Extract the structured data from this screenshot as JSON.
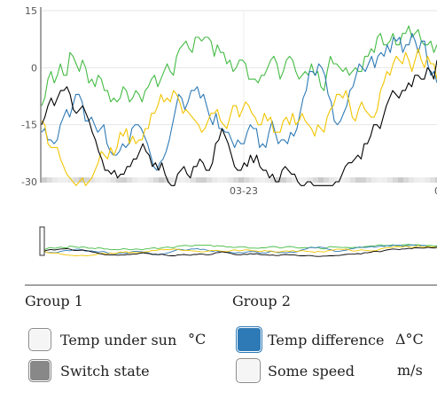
{
  "chart_data": {
    "type": "line",
    "title": "",
    "y_ticks": [
      15,
      0,
      -15,
      -30
    ],
    "ylim": [
      -30,
      15
    ],
    "x_tick_label": "03-23",
    "x_tick_label_right": "0",
    "grid": true,
    "series": [
      {
        "name": "Temp under sun",
        "color": "#44bb44",
        "values": [
          -10,
          -8,
          -3,
          -1,
          -4,
          -2,
          1,
          -2,
          -2,
          4,
          3,
          1,
          -1,
          2,
          0,
          -4,
          -3,
          -5,
          -2,
          -3,
          -6,
          -6,
          -9,
          -8,
          -9,
          -8,
          -5,
          -6,
          -9,
          -8,
          -6,
          -7,
          -9,
          -6,
          -5,
          -3,
          -2,
          -5,
          -3,
          -1,
          1,
          -1,
          -2,
          3,
          5,
          6,
          7,
          5,
          4,
          8,
          8,
          7,
          8,
          8,
          7,
          3,
          6,
          4,
          4,
          1,
          2,
          -1,
          0,
          2,
          2,
          1,
          -3,
          -3,
          -3,
          -4,
          -2,
          -2,
          0,
          2,
          3,
          1,
          -3,
          -1,
          2,
          3,
          2,
          -1,
          -3,
          -2,
          -1,
          -2,
          1,
          -2,
          -1,
          -5,
          -6,
          -1,
          3,
          1,
          1,
          0,
          -1,
          0,
          -2,
          -1,
          0,
          -1,
          -1,
          3,
          3,
          5,
          4,
          8,
          9,
          6,
          6,
          7,
          9,
          6,
          6,
          9,
          9,
          11,
          8,
          9,
          10,
          7,
          6,
          6,
          7,
          4,
          6
        ]
      },
      {
        "name": "Temp difference",
        "color": "#2e7ab6",
        "values": [
          -17,
          -16,
          -19,
          -19,
          -20,
          -19,
          -15,
          -13,
          -11,
          -13,
          -10,
          -7,
          -7,
          -9,
          -14,
          -14,
          -13,
          -15,
          -17,
          -16,
          -15,
          -20,
          -22,
          -23,
          -23,
          -22,
          -20,
          -21,
          -20,
          -16,
          -15,
          -15,
          -16,
          -18,
          -20,
          -23,
          -26,
          -27,
          -25,
          -24,
          -22,
          -19,
          -15,
          -11,
          -7,
          -8,
          -11,
          -9,
          -6,
          -6,
          -5,
          -8,
          -7,
          -10,
          -13,
          -15,
          -12,
          -16,
          -16,
          -17,
          -17,
          -19,
          -21,
          -19,
          -20,
          -20,
          -17,
          -15,
          -16,
          -16,
          -21,
          -20,
          -21,
          -17,
          -14,
          -17,
          -20,
          -19,
          -19,
          -20,
          -17,
          -18,
          -16,
          -12,
          -8,
          -6,
          -1,
          -1,
          -2,
          1,
          0,
          -2,
          -7,
          -9,
          -14,
          -15,
          -14,
          -12,
          -10,
          -6,
          -5,
          -2,
          1,
          0,
          -1,
          1,
          3,
          0,
          3,
          4,
          3,
          6,
          4,
          8,
          7,
          8,
          4,
          6,
          6,
          9,
          7,
          4,
          7,
          7,
          1,
          -2,
          -1,
          -4
        ]
      },
      {
        "name": "Some speed",
        "color": "#f2c500",
        "values": [
          -14,
          -15,
          -20,
          -21,
          -21,
          -21,
          -24,
          -26,
          -28,
          -29,
          -30,
          -31,
          -30,
          -29,
          -31,
          -30,
          -29,
          -27,
          -25,
          -22,
          -23,
          -24,
          -21,
          -23,
          -21,
          -17,
          -18,
          -16,
          -20,
          -18,
          -20,
          -19,
          -19,
          -16,
          -16,
          -12,
          -12,
          -10,
          -7,
          -9,
          -8,
          -9,
          -6,
          -7,
          -9,
          -12,
          -11,
          -12,
          -13,
          -14,
          -15,
          -17,
          -16,
          -14,
          -12,
          -12,
          -11,
          -14,
          -15,
          -16,
          -13,
          -10,
          -10,
          -13,
          -11,
          -9,
          -10,
          -12,
          -13,
          -15,
          -15,
          -12,
          -14,
          -13,
          -17,
          -17,
          -17,
          -14,
          -13,
          -15,
          -12,
          -15,
          -14,
          -12,
          -14,
          -15,
          -16,
          -18,
          -15,
          -16,
          -17,
          -13,
          -11,
          -10,
          -7,
          -7,
          -8,
          -6,
          -9,
          -13,
          -14,
          -11,
          -9,
          -11,
          -12,
          -13,
          -13,
          -11,
          -6,
          -4,
          -1,
          -2,
          1,
          3,
          2,
          1,
          4,
          2,
          -1,
          2,
          5,
          2,
          0,
          3,
          1,
          1,
          -3
        ]
      },
      {
        "name": "Switch state",
        "color": "#000000",
        "values": [
          -15,
          -13,
          -10,
          -8,
          -10,
          -8,
          -6,
          -6,
          -5,
          -7,
          -11,
          -12,
          -11,
          -10,
          -12,
          -14,
          -17,
          -19,
          -22,
          -24,
          -27,
          -27,
          -28,
          -27,
          -29,
          -28,
          -28,
          -26,
          -26,
          -24,
          -24,
          -22,
          -20,
          -22,
          -23,
          -26,
          -25,
          -27,
          -25,
          -28,
          -30,
          -31,
          -31,
          -28,
          -27,
          -26,
          -28,
          -29,
          -26,
          -26,
          -24,
          -25,
          -27,
          -27,
          -25,
          -20,
          -19,
          -16,
          -18,
          -20,
          -23,
          -26,
          -27,
          -27,
          -25,
          -26,
          -23,
          -25,
          -23,
          -26,
          -27,
          -27,
          -29,
          -28,
          -30,
          -30,
          -27,
          -26,
          -27,
          -28,
          -28,
          -30,
          -31,
          -31,
          -30,
          -30,
          -32,
          -33,
          -33,
          -32,
          -32,
          -31,
          -31,
          -30,
          -30,
          -28,
          -26,
          -25,
          -25,
          -24,
          -23,
          -24,
          -20,
          -20,
          -18,
          -15,
          -15,
          -16,
          -13,
          -10,
          -8,
          -6,
          -7,
          -8,
          -6,
          -6,
          -4,
          -5,
          -2,
          -2,
          -3,
          -3,
          0,
          -1,
          -3,
          2
        ]
      }
    ]
  },
  "legend": {
    "group1": {
      "title": "Group 1",
      "items": [
        {
          "label": "Temp under sun",
          "unit": "°C"
        },
        {
          "label": "Switch state",
          "unit": ""
        }
      ]
    },
    "group2": {
      "title": "Group 2",
      "items": [
        {
          "label": "Temp difference",
          "unit": "Δ°C"
        },
        {
          "label": "Some speed",
          "unit": "m/s"
        }
      ]
    }
  }
}
